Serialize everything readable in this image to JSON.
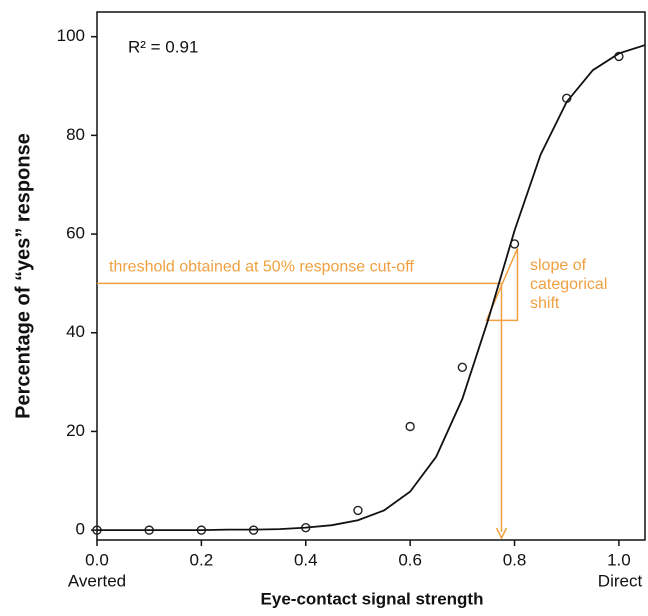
{
  "chart_data": {
    "type": "scatter",
    "xlabel": "Eye-contact signal strength",
    "ylabel": "Percentage of “yes” response",
    "x_end_labels": [
      "Averted",
      "Direct"
    ],
    "annotations": [
      "R² = 0.91",
      "threshold obtained at 50% response cut-off",
      "slope of",
      "categorical",
      "shift"
    ],
    "xlim": [
      0,
      1.05
    ],
    "ylim": [
      -2,
      105
    ],
    "xticks": [
      {
        "value": 0,
        "label": "0.0"
      },
      0.2,
      0.4,
      0.6,
      0.8,
      {
        "value": 1,
        "label": "1.0"
      }
    ],
    "yticks": [
      0,
      20,
      40,
      60,
      80,
      100
    ],
    "series": [
      {
        "type": "scatter",
        "color": "#222222",
        "x": [
          0,
          0.1,
          0.2,
          0.3,
          0.4,
          0.5,
          0.6,
          0.7,
          0.8,
          0.9,
          1.0
        ],
        "values": [
          0,
          0,
          0,
          0,
          0.5,
          4,
          21,
          33,
          58,
          87.5,
          96
        ]
      },
      {
        "type": "line",
        "color": "#111111",
        "x": [
          0,
          0.05,
          0.1,
          0.15,
          0.2,
          0.25,
          0.3,
          0.35,
          0.4,
          0.45,
          0.5,
          0.55,
          0.6,
          0.65,
          0.7,
          0.75,
          0.8,
          0.85,
          0.9,
          0.95,
          1.0,
          1.05
        ],
        "values": [
          0,
          0,
          0,
          0,
          0,
          0.1,
          0.1,
          0.2,
          0.5,
          1,
          2,
          4,
          7.8,
          14.9,
          26.6,
          42.8,
          60.7,
          76.1,
          86.8,
          93.2,
          96.6,
          98.3
        ]
      }
    ],
    "threshold": {
      "x": 0.775,
      "y": 50,
      "color": "#f0a040"
    }
  }
}
